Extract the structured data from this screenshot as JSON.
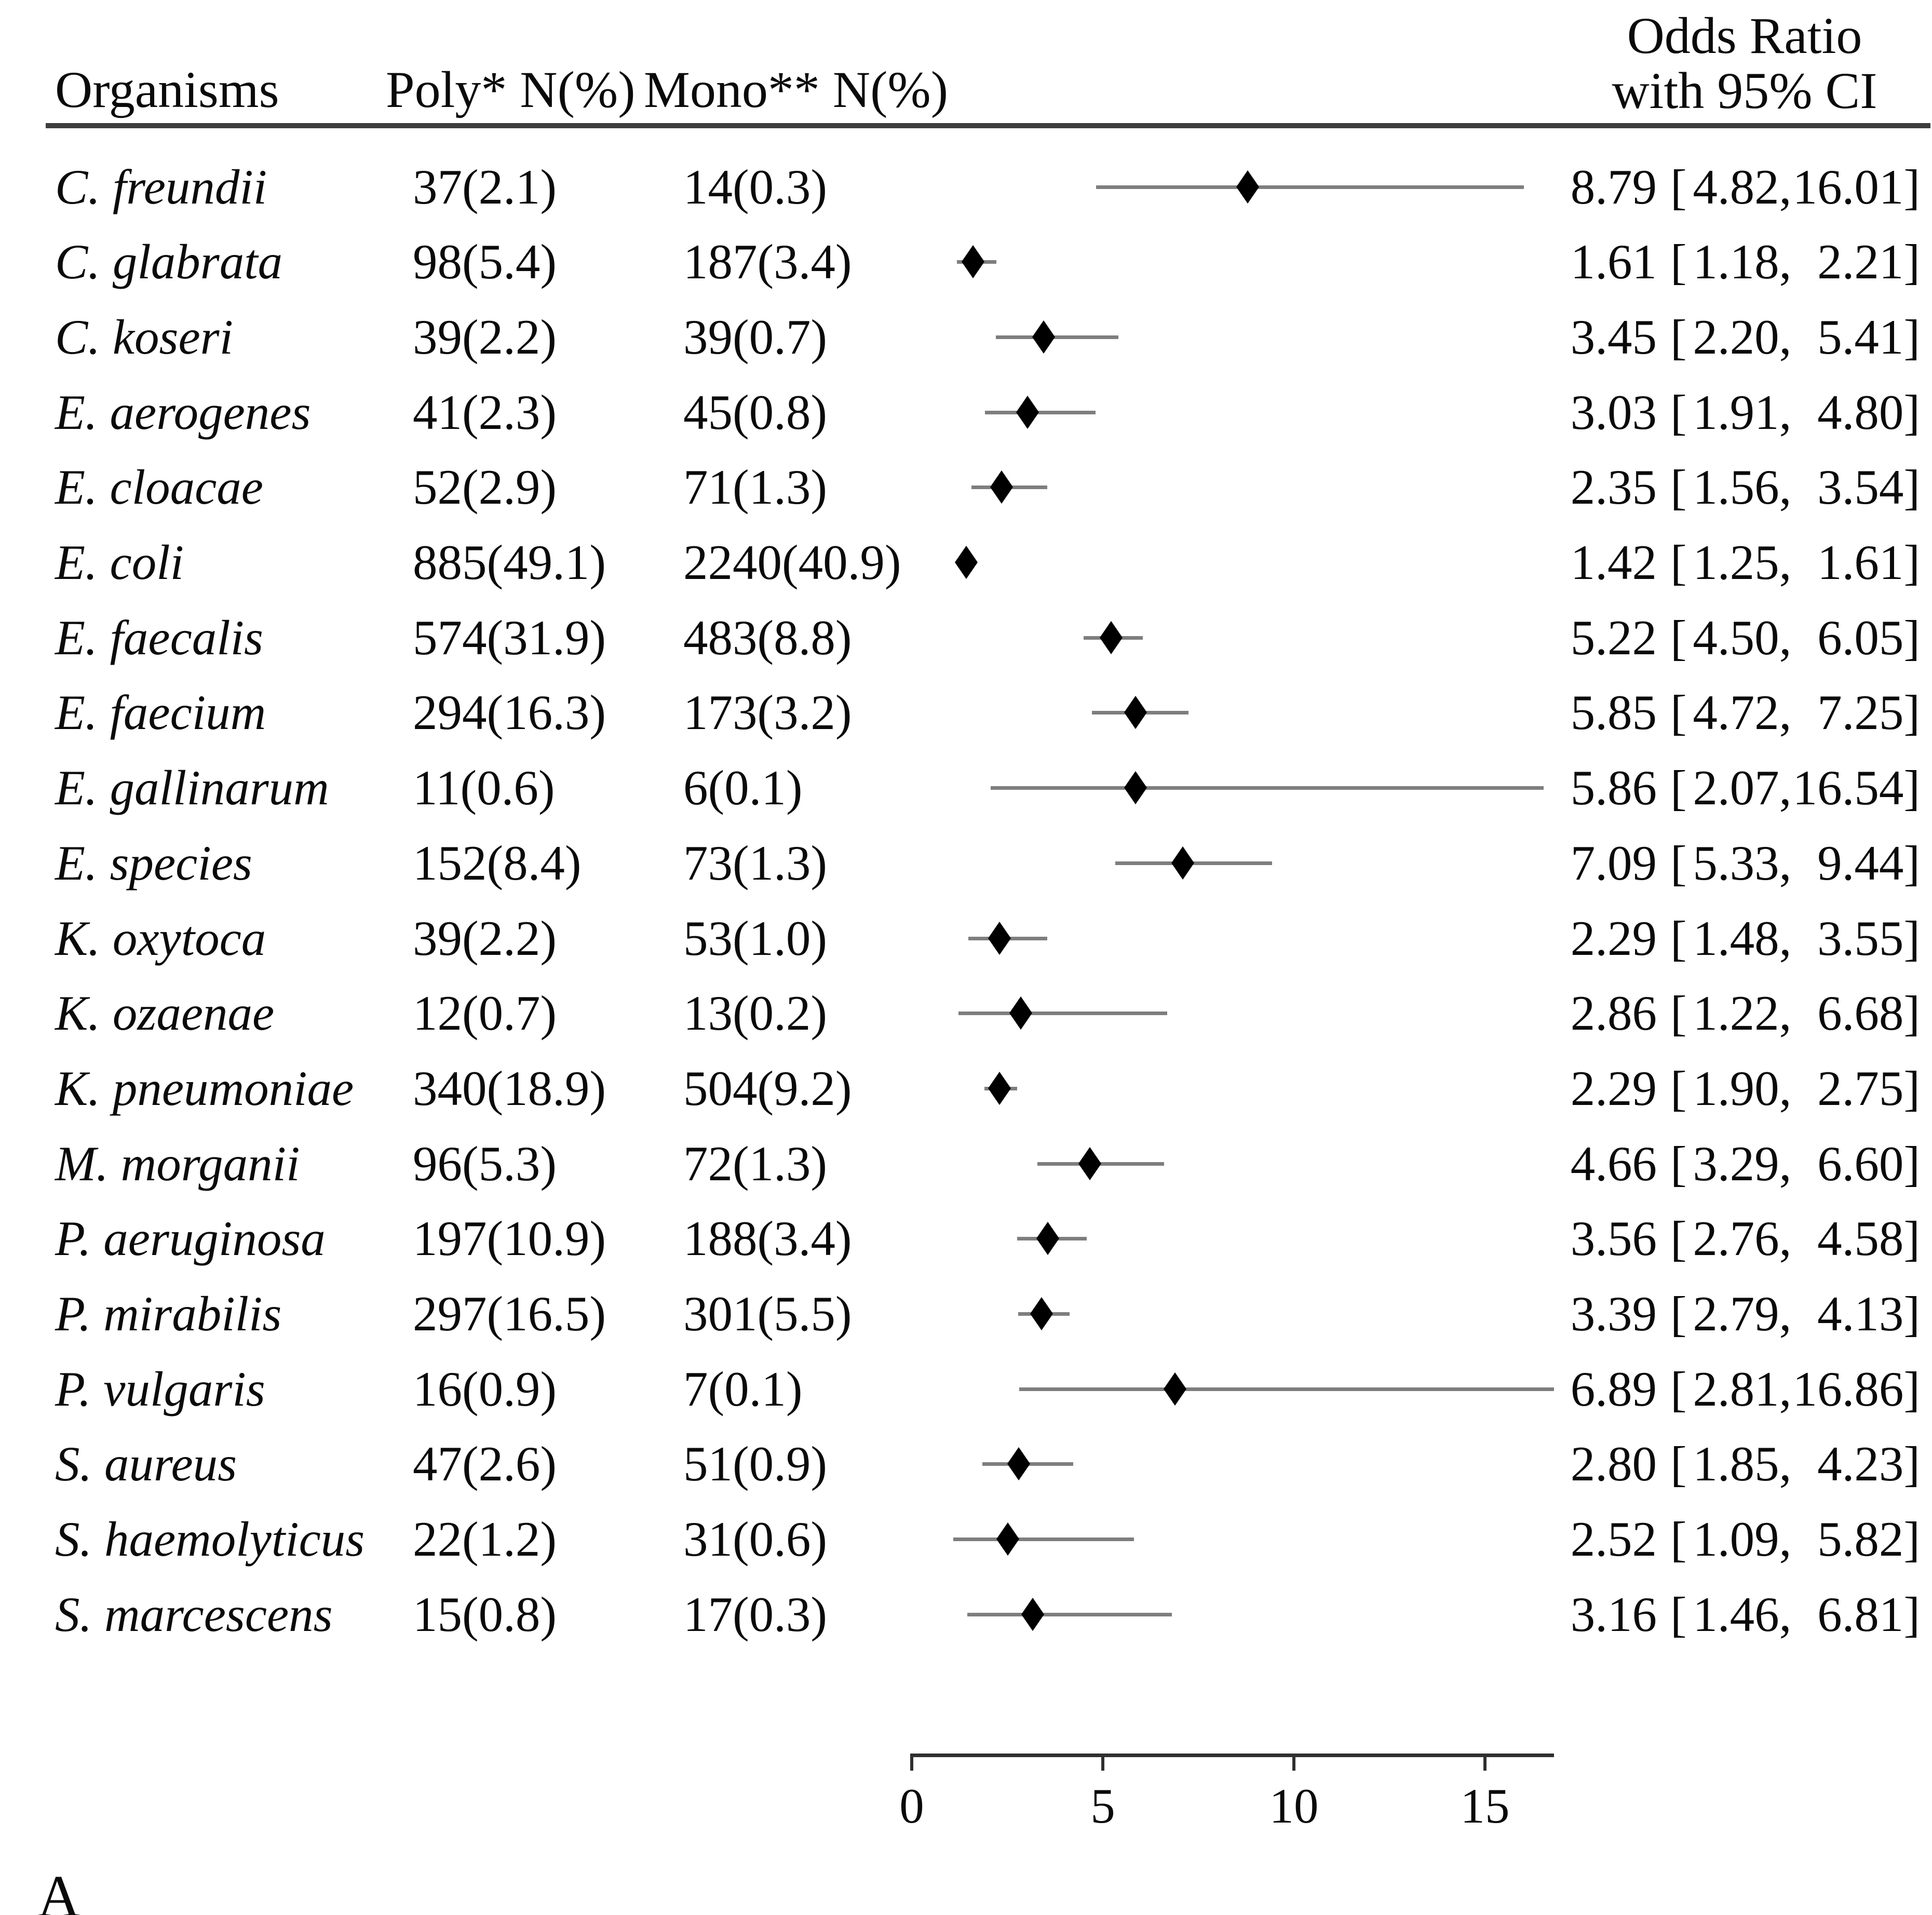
{
  "page": {
    "panel_label": "A",
    "background": "#ffffff"
  },
  "table": {
    "headers": {
      "organisms": "Organisms",
      "poly": "Poly* N(%)",
      "mono": "Mono** N(%)",
      "or_line1": "Odds Ratio",
      "or_line2": "with 95% CI"
    }
  },
  "colors": {
    "diamond": "#000000",
    "ci_line": "#7e7e7e",
    "rule": "#3d3d3d",
    "axis": "#2f2f2f",
    "text": "#0a0a0a"
  },
  "chart_data": {
    "type": "scatter",
    "subtype": "forest_plot",
    "marker": "diamond",
    "title": "",
    "xlabel": "",
    "ylabel": "",
    "xlim": [
      0,
      16.8
    ],
    "x_ticks": [
      0,
      5,
      10,
      15
    ],
    "grid": false,
    "legend": "none",
    "columns": [
      "Organisms",
      "Poly* N(%)",
      "Mono** N(%)",
      "Odds Ratio with 95% CI"
    ],
    "rows": [
      {
        "organism": "C. freundii",
        "poly": "37(2.1)",
        "mono": "14(0.3)",
        "or": "8.79",
        "ci_low": "4.82",
        "ci_high": "16.01"
      },
      {
        "organism": "C. glabrata",
        "poly": "98(5.4)",
        "mono": "187(3.4)",
        "or": "1.61",
        "ci_low": "1.18",
        "ci_high": "2.21"
      },
      {
        "organism": "C. koseri",
        "poly": "39(2.2)",
        "mono": "39(0.7)",
        "or": "3.45",
        "ci_low": "2.20",
        "ci_high": "5.41"
      },
      {
        "organism": "E. aerogenes",
        "poly": "41(2.3)",
        "mono": "45(0.8)",
        "or": "3.03",
        "ci_low": "1.91",
        "ci_high": "4.80"
      },
      {
        "organism": "E. cloacae",
        "poly": "52(2.9)",
        "mono": "71(1.3)",
        "or": "2.35",
        "ci_low": "1.56",
        "ci_high": "3.54"
      },
      {
        "organism": "E. coli",
        "poly": "885(49.1)",
        "mono": "2240(40.9)",
        "or": "1.42",
        "ci_low": "1.25",
        "ci_high": "1.61"
      },
      {
        "organism": "E. faecalis",
        "poly": "574(31.9)",
        "mono": "483(8.8)",
        "or": "5.22",
        "ci_low": "4.50",
        "ci_high": "6.05"
      },
      {
        "organism": "E. faecium",
        "poly": "294(16.3)",
        "mono": "173(3.2)",
        "or": "5.85",
        "ci_low": "4.72",
        "ci_high": "7.25"
      },
      {
        "organism": "E. gallinarum",
        "poly": "11(0.6)",
        "mono": "6(0.1)",
        "or": "5.86",
        "ci_low": "2.07",
        "ci_high": "16.54"
      },
      {
        "organism": "E. species",
        "poly": "152(8.4)",
        "mono": "73(1.3)",
        "or": "7.09",
        "ci_low": "5.33",
        "ci_high": "9.44"
      },
      {
        "organism": "K. oxytoca",
        "poly": "39(2.2)",
        "mono": "53(1.0)",
        "or": "2.29",
        "ci_low": "1.48",
        "ci_high": "3.55"
      },
      {
        "organism": "K. ozaenae",
        "poly": "12(0.7)",
        "mono": "13(0.2)",
        "or": "2.86",
        "ci_low": "1.22",
        "ci_high": "6.68"
      },
      {
        "organism": "K. pneumoniae",
        "poly": "340(18.9)",
        "mono": "504(9.2)",
        "or": "2.29",
        "ci_low": "1.90",
        "ci_high": "2.75"
      },
      {
        "organism": "M. morganii",
        "poly": "96(5.3)",
        "mono": "72(1.3)",
        "or": "4.66",
        "ci_low": "3.29",
        "ci_high": "6.60"
      },
      {
        "organism": "P. aeruginosa",
        "poly": "197(10.9)",
        "mono": "188(3.4)",
        "or": "3.56",
        "ci_low": "2.76",
        "ci_high": "4.58"
      },
      {
        "organism": "P. mirabilis",
        "poly": "297(16.5)",
        "mono": "301(5.5)",
        "or": "3.39",
        "ci_low": "2.79",
        "ci_high": "4.13"
      },
      {
        "organism": "P. vulgaris",
        "poly": "16(0.9)",
        "mono": "7(0.1)",
        "or": "6.89",
        "ci_low": "2.81",
        "ci_high": "16.86"
      },
      {
        "organism": "S. aureus",
        "poly": "47(2.6)",
        "mono": "51(0.9)",
        "or": "2.80",
        "ci_low": "1.85",
        "ci_high": "4.23"
      },
      {
        "organism": "S. haemolyticus",
        "poly": "22(1.2)",
        "mono": "31(0.6)",
        "or": "2.52",
        "ci_low": "1.09",
        "ci_high": "5.82"
      },
      {
        "organism": "S. marcescens",
        "poly": "15(0.8)",
        "mono": "17(0.3)",
        "or": "3.16",
        "ci_low": "1.46",
        "ci_high": "6.81"
      }
    ]
  }
}
